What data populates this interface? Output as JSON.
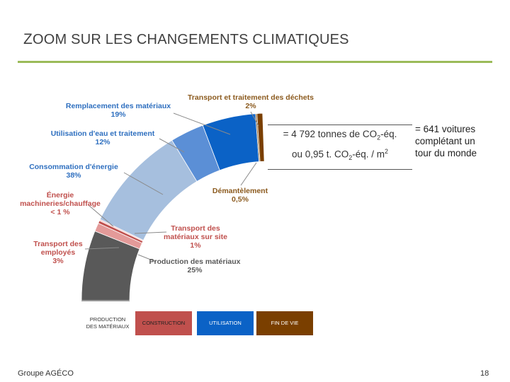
{
  "slide": {
    "title_first_letter": "Z",
    "title_rest": "OOM SUR LES CHANGEMENTS CLIMATIQUES",
    "footer_left": "Groupe AGÉCO",
    "page_number": "18"
  },
  "equivalences": {
    "line1_prefix": "= 4 792 tonnes de CO",
    "line1_sub": "2",
    "line1_suffix": "-éq.",
    "line2_prefix": "ou 0,95 t. CO",
    "line2_sub": "2",
    "line2_suffix": "-éq. / m",
    "line2_sup": "2",
    "cars_line1": "= 641 voitures",
    "cars_line2": "complétant un",
    "cars_line3": "tour du monde"
  },
  "chart_data": {
    "type": "pie",
    "subtype": "half-donut arc",
    "slices": [
      {
        "label": "Production des matériaux",
        "pct_text": "25%",
        "value": 25,
        "color": "#595959",
        "phase": "PRODUCTION DES MATÉRIAUX"
      },
      {
        "label": "Transport des employés",
        "pct_text": "3%",
        "value": 3,
        "color": "#e39a99",
        "phase": "CONSTRUCTION"
      },
      {
        "label": "Transport des matériaux sur site",
        "pct_text": "1%",
        "value": 1,
        "color": "#c0504d",
        "phase": "CONSTRUCTION"
      },
      {
        "label": "Énergie machineries/chauffage",
        "pct_text": "< 1 %",
        "value": 0.5,
        "color": "#f2c4c3",
        "phase": "CONSTRUCTION"
      },
      {
        "label": "Consommation d'énergie",
        "pct_text": "38%",
        "value": 38,
        "color": "#a6bfde",
        "phase": "UTILISATION"
      },
      {
        "label": "Utilisation d'eau et traitement",
        "pct_text": "12%",
        "value": 12,
        "color": "#5b8fd6",
        "phase": "UTILISATION"
      },
      {
        "label": "Remplacement des matériaux",
        "pct_text": "19%",
        "value": 19,
        "color": "#0b62c6",
        "phase": "UTILISATION"
      },
      {
        "label": "Démantèlement",
        "pct_text": "0,5%",
        "value": 0.5,
        "color": "#8b5a1e",
        "phase": "FIN DE VIE"
      },
      {
        "label": "Transport et traitement des déchets",
        "pct_text": "2%",
        "value": 2,
        "color": "#7a3f00",
        "phase": "FIN DE VIE"
      }
    ],
    "phases": [
      {
        "label_line1": "PRODUCTION",
        "label_line2": "DES MATÉRIAUX",
        "color": "#ffffff",
        "text_color": "#333333"
      },
      {
        "label_line1": "CONSTRUCTION",
        "label_line2": "",
        "color": "#c0504d",
        "text_color": "#222222"
      },
      {
        "label_line1": "UTILISATION",
        "label_line2": "",
        "color": "#0b62c6",
        "text_color": "#ffffff"
      },
      {
        "label_line1": "FIN DE VIE",
        "label_line2": "",
        "color": "#7a3f00",
        "text_color": "#ffffff"
      }
    ],
    "label_colors": {
      "construction": "#c0504d",
      "utilisation": "#2e6fbf",
      "fin_de_vie": "#8b5a1e",
      "production": "#595959"
    }
  }
}
